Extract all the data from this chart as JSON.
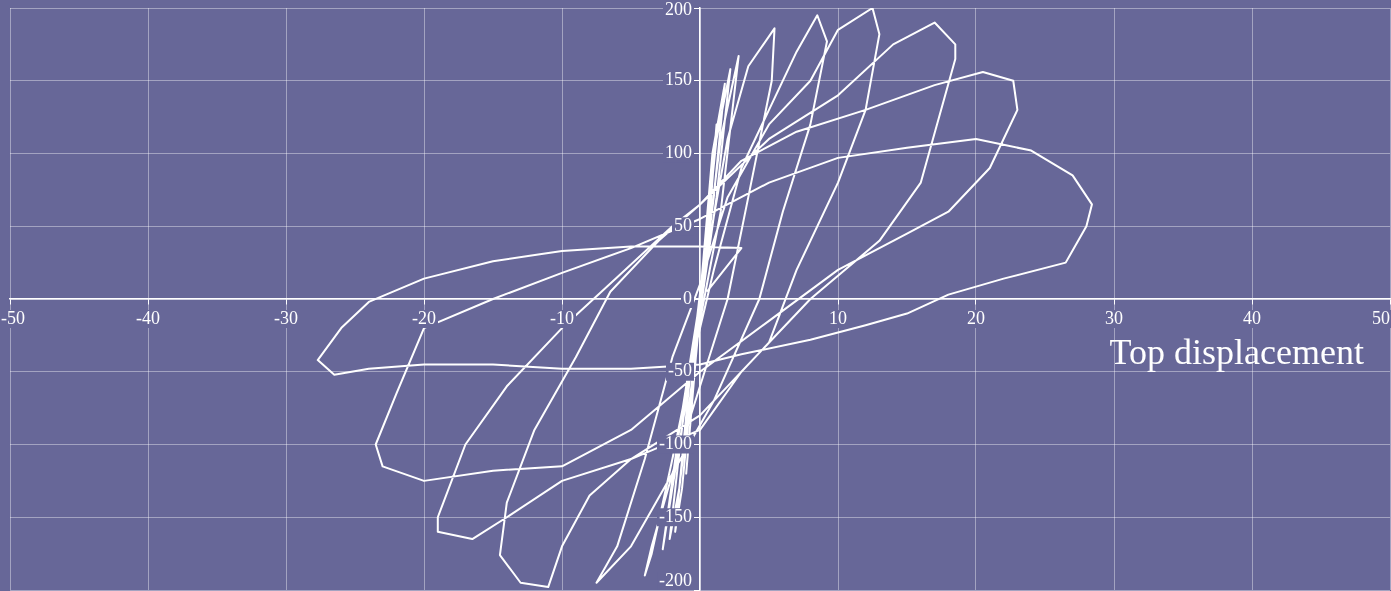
{
  "chart_data": {
    "type": "line",
    "xlabel": "Top displacement",
    "xlim": [
      -50,
      50
    ],
    "xticks": [
      -50,
      -40,
      -30,
      -20,
      -10,
      {
        "value": 0,
        "label": null
      },
      10,
      20,
      30,
      40,
      50
    ],
    "ylim": [
      -200,
      200
    ],
    "yticks": [
      -200,
      -150,
      -100,
      -50,
      0,
      50,
      100,
      150,
      200
    ],
    "grid": true,
    "marker": "none",
    "line_style": "solid",
    "series": [
      {
        "color": "#ffffff",
        "x": [
          0,
          0.5,
          1.2,
          0.5,
          -0.3,
          -1,
          -0.4,
          0,
          0.9,
          1.8,
          1,
          -0.2,
          -1.3,
          -1.8,
          -0.8,
          0.2,
          1.2,
          2.2,
          1.2,
          0,
          -1.5,
          -2.2,
          -1.2,
          0.3,
          1.5,
          2.8,
          1.5,
          -0.5,
          -2,
          -2.7,
          -1.5,
          0.5,
          2,
          3.5,
          5.4,
          5.2,
          3.5,
          2,
          0,
          -2,
          -3.5,
          -4,
          -3.5,
          -2,
          -0.5,
          1,
          3,
          5,
          7,
          8.5,
          9.2,
          8,
          6,
          4.3,
          1,
          -2,
          -5,
          -7,
          -7.5,
          -6,
          -4,
          -2,
          0,
          2,
          5,
          8,
          10,
          12.5,
          13,
          12,
          10,
          7,
          5,
          0,
          -5,
          -8,
          -10,
          -11,
          -13,
          -14.5,
          -14,
          -12,
          -9,
          -6.5,
          -3,
          0,
          5,
          10,
          14,
          17,
          18.5,
          18.5,
          16,
          13,
          8,
          3,
          0,
          -5,
          -10,
          -14,
          -16.5,
          -19,
          -19,
          -17,
          -14,
          -10,
          -6,
          -2,
          0,
          3,
          7,
          12,
          17,
          20.5,
          22.7,
          23,
          21,
          18,
          15,
          10,
          5,
          0,
          -5,
          -10,
          -15,
          -20,
          -23,
          -23.5,
          -22,
          -20,
          -15,
          -10,
          -5,
          0,
          5,
          10,
          15,
          20,
          24,
          27,
          28.4,
          28,
          26.5,
          22,
          18,
          15,
          12,
          8,
          3,
          0,
          -5,
          -10,
          -15,
          -20,
          -24,
          -26.5,
          -27.7,
          -26,
          -24,
          -20,
          -15,
          -10,
          -5,
          0,
          3,
          0.5
        ],
        "values": [
          0,
          30,
          120,
          40,
          -40,
          -120,
          -50,
          0,
          100,
          148,
          70,
          -20,
          -130,
          -160,
          -60,
          20,
          110,
          158,
          70,
          -10,
          -130,
          -165,
          -80,
          20,
          110,
          167,
          60,
          -40,
          -130,
          -172,
          -90,
          30,
          110,
          160,
          186,
          150,
          70,
          0,
          -60,
          -120,
          -170,
          -190,
          -175,
          -110,
          -40,
          20,
          90,
          130,
          170,
          195,
          177,
          120,
          60,
          0,
          -70,
          -120,
          -170,
          -190,
          -195,
          -170,
          -110,
          -40,
          10,
          70,
          120,
          150,
          185,
          200,
          182,
          130,
          80,
          20,
          -30,
          -80,
          -110,
          -135,
          -170,
          -198,
          -195,
          -176,
          -140,
          -90,
          -40,
          5,
          40,
          65,
          110,
          140,
          175,
          190,
          175,
          165,
          80,
          40,
          0,
          -50,
          -90,
          -110,
          -125,
          -150,
          -165,
          -160,
          -150,
          -100,
          -60,
          -20,
          15,
          50,
          65,
          95,
          115,
          130,
          147,
          156,
          150,
          130,
          90,
          60,
          45,
          20,
          -15,
          -50,
          -90,
          -115,
          -118,
          -125,
          -115,
          -100,
          -65,
          -20,
          0,
          18,
          35,
          55,
          80,
          97,
          104,
          110,
          102,
          85,
          65,
          50,
          25,
          14,
          3,
          -10,
          -18,
          -28,
          -38,
          -45,
          -48,
          -48,
          -45,
          -45,
          -48,
          -52,
          -42,
          -20,
          -2,
          14,
          26,
          33,
          36,
          36,
          35,
          5
        ]
      }
    ]
  }
}
